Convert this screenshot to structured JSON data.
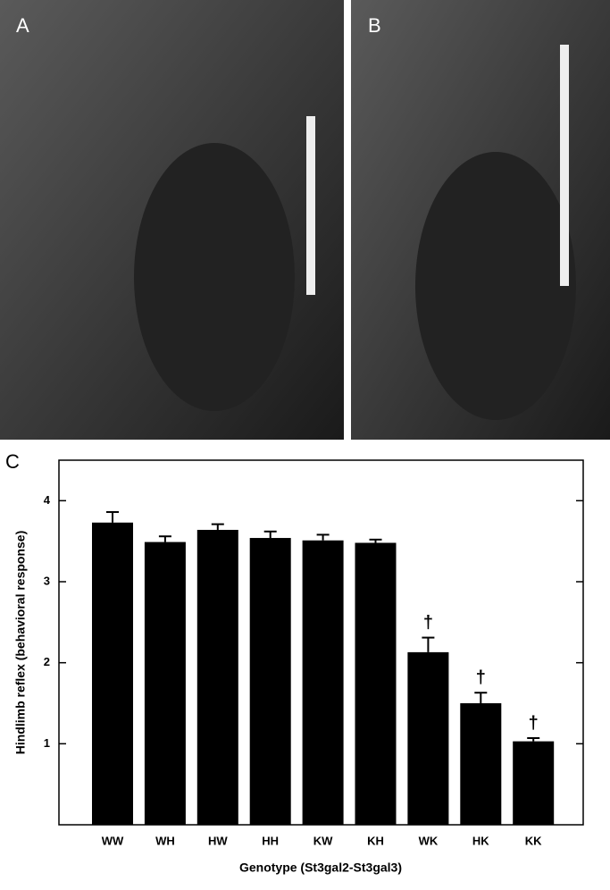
{
  "panels": {
    "a": "A",
    "b": "B",
    "c": "C"
  },
  "chart_data": {
    "type": "bar",
    "ylabel": "Hindlimb reflex (behavioral response)",
    "xlabel": "Genotype (St3gal2-St3gal3)",
    "categories": [
      "WW",
      "WH",
      "HW",
      "HH",
      "KW",
      "KH",
      "WK",
      "HK",
      "KK"
    ],
    "values": [
      3.73,
      3.49,
      3.64,
      3.54,
      3.51,
      3.48,
      2.13,
      1.5,
      1.03
    ],
    "errors": [
      0.13,
      0.07,
      0.07,
      0.08,
      0.07,
      0.04,
      0.18,
      0.13,
      0.04
    ],
    "color": "#000000",
    "ylim": [
      0,
      4.5
    ],
    "yticks": [
      1,
      2,
      3,
      4
    ],
    "annotations": [
      {
        "text": "†",
        "x": "WK"
      },
      {
        "text": "†",
        "x": "HK"
      },
      {
        "text": "†",
        "x": "KK"
      }
    ]
  }
}
